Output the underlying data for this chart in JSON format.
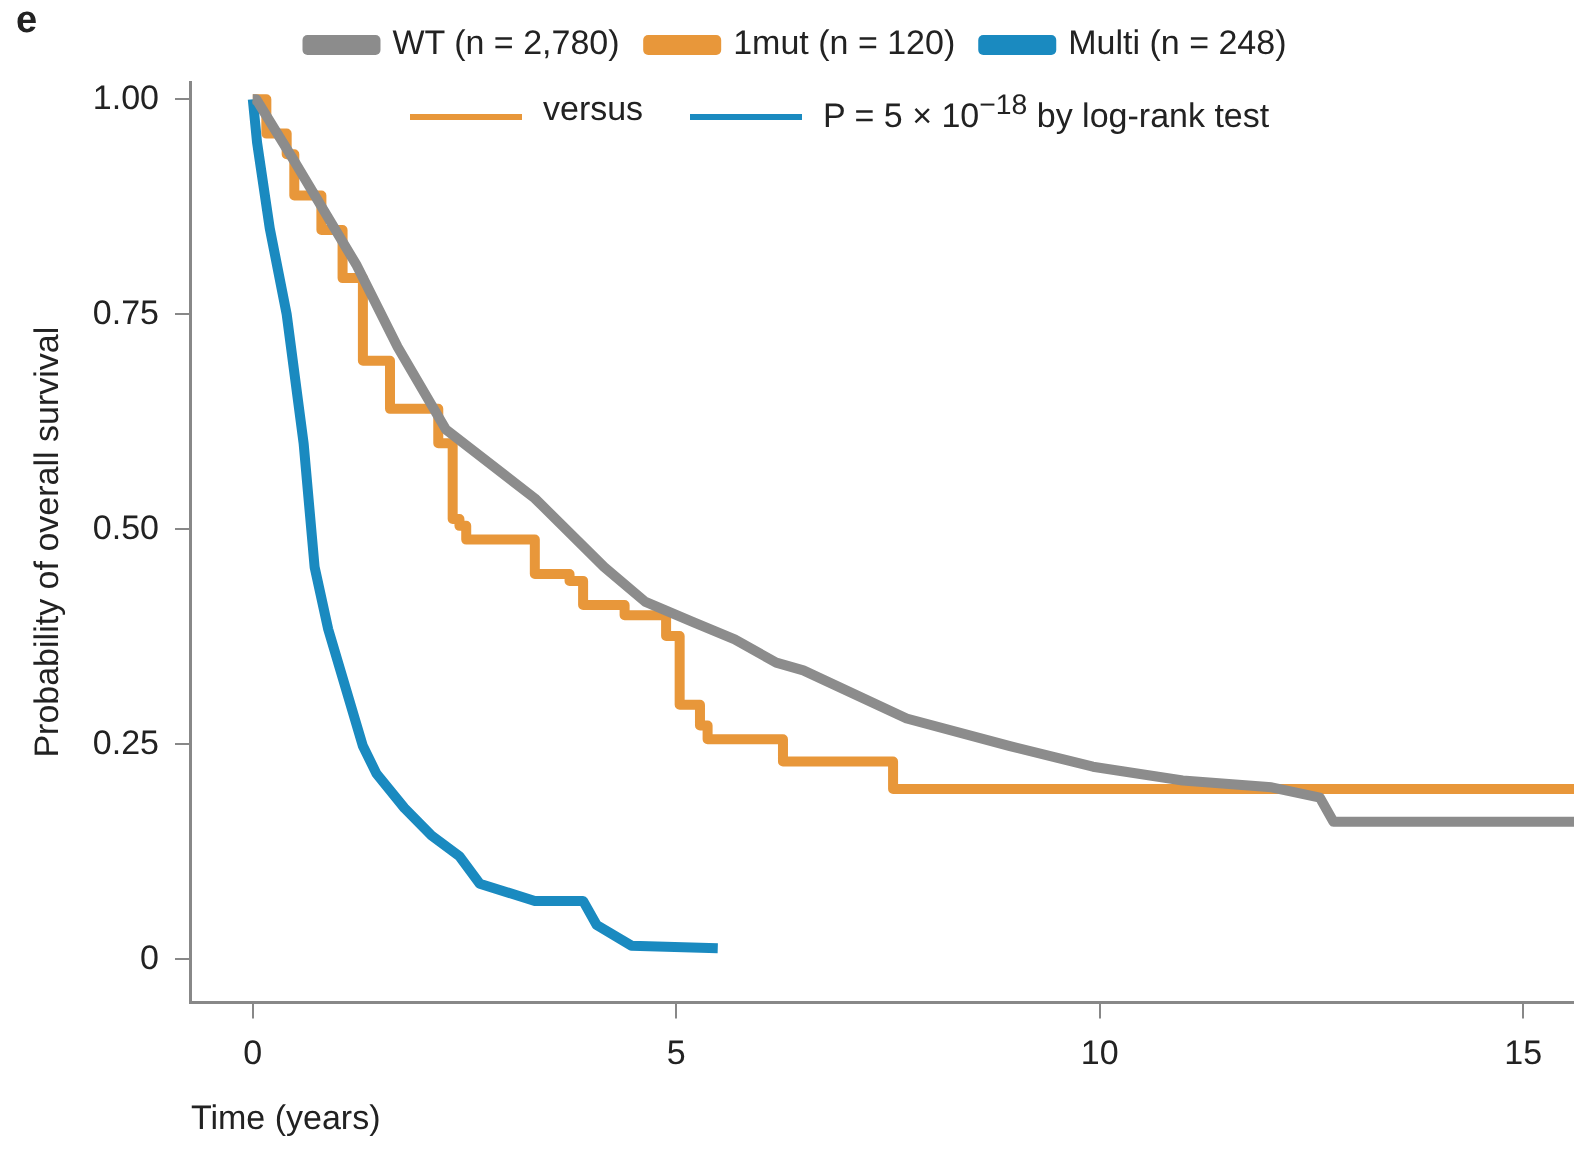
{
  "chart_data": {
    "type": "step",
    "xlabel": "Time (years)",
    "ylabel": "Probability of overall survival",
    "annotations": [
      "e",
      "versus",
      "P = 5 × 10$^{−18}$ by log-rank test"
    ],
    "xlim": [
      -0.73,
      15.6
    ],
    "xticks": [
      0,
      5,
      10,
      15
    ],
    "ylim": [
      -0.05,
      1.02
    ],
    "yticks": [
      0,
      {
        "value": 0.25,
        "label": "0.25"
      },
      {
        "value": 0.5,
        "label": "0.50"
      },
      {
        "value": 0.75,
        "label": "0.75"
      },
      {
        "value": 1,
        "label": "1.00"
      }
    ],
    "grid": false,
    "legend": "top",
    "marker": "none",
    "line_style": "solid",
    "series": [
      {
        "name": "WT (n = 2,780)",
        "type": "line",
        "color": "#8c8c8c",
        "x": [
          0,
          0.04,
          0.49,
          1.22,
          1.71,
          2.28,
          3.33,
          4.15,
          4.63,
          5.2,
          5.69,
          6.18,
          6.5,
          7.72,
          8.94,
          9.92,
          10.98,
          12.03,
          12.6,
          12.76,
          15.6
        ],
        "values": [
          1,
          1,
          0.928,
          0.808,
          0.712,
          0.616,
          0.536,
          0.456,
          0.416,
          0.392,
          0.372,
          0.345,
          0.336,
          0.28,
          0.248,
          0.224,
          0.208,
          0.2,
          0.188,
          0.16,
          0.16
        ]
      },
      {
        "name": "1mut (n = 120)",
        "color": "#e8973a",
        "x": [
          0,
          0.16,
          0.4,
          0.49,
          0.81,
          1.06,
          1.3,
          1.62,
          1.95,
          2.19,
          2.36,
          2.44,
          2.52,
          3.25,
          3.33,
          3.74,
          3.9,
          4.39,
          4.88,
          5.04,
          5.28,
          5.37,
          6.26,
          7.56,
          15.6
        ],
        "values": [
          1,
          0.96,
          0.936,
          0.888,
          0.848,
          0.792,
          0.696,
          0.64,
          0.64,
          0.6,
          0.512,
          0.504,
          0.488,
          0.488,
          0.448,
          0.44,
          0.412,
          0.4,
          0.376,
          0.296,
          0.272,
          0.256,
          0.23,
          0.198,
          0.198
        ]
      },
      {
        "name": "Multi (n = 248)",
        "type": "line",
        "color": "#1a8ac0",
        "x": [
          0,
          0.05,
          0.2,
          0.4,
          0.6,
          0.73,
          0.89,
          1.3,
          1.46,
          1.79,
          2.11,
          2.44,
          2.68,
          3.33,
          3.9,
          4.06,
          4.47,
          5.49
        ],
        "values": [
          1,
          0.95,
          0.85,
          0.75,
          0.6,
          0.456,
          0.384,
          0.248,
          0.216,
          0.176,
          0.144,
          0.12,
          0.088,
          0.068,
          0.068,
          0.04,
          0.016,
          0.013
        ]
      }
    ]
  }
}
